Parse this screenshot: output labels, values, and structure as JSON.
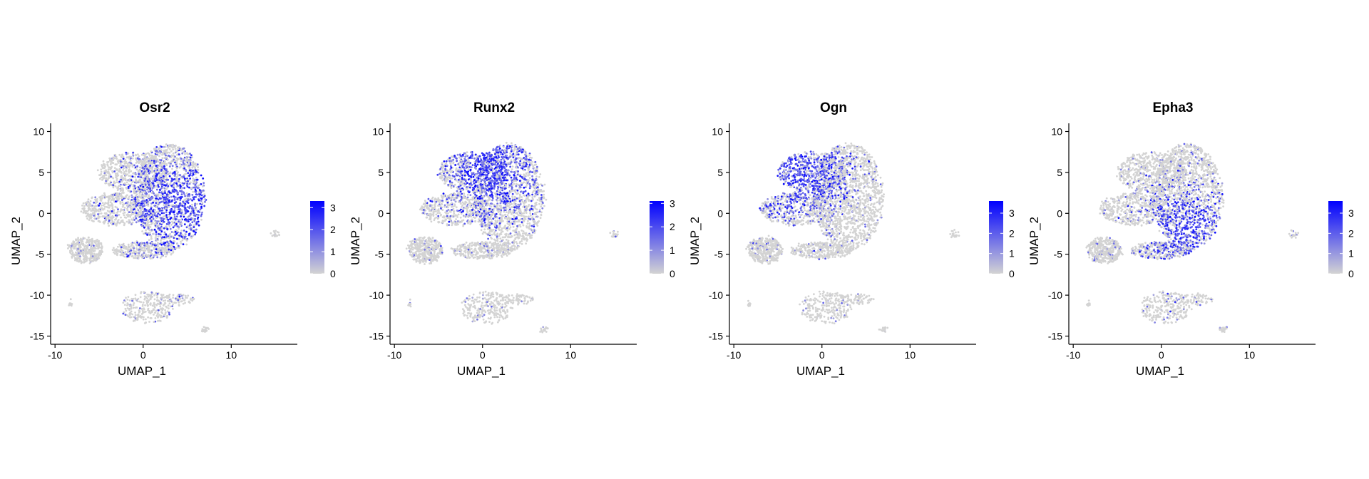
{
  "chart_data": [
    {
      "type": "scatter",
      "title": "Osr2",
      "xlabel": "UMAP_1",
      "ylabel": "UMAP_2",
      "xticks": [
        -10,
        0,
        10
      ],
      "yticks": [
        -15,
        -10,
        -5,
        0,
        5,
        10
      ],
      "xlim": [
        -10.5,
        17.5
      ],
      "ylim": [
        -16,
        11
      ],
      "legend": {
        "position": "right",
        "ticks": [
          0,
          1,
          2,
          3
        ],
        "max": 3.3,
        "low_color": "#d3d3d3",
        "high_color": "#0000ff"
      },
      "expression_center": [
        5,
        1
      ],
      "expression_spread": 4
    },
    {
      "type": "scatter",
      "title": "Runx2",
      "xlabel": "UMAP_1",
      "ylabel": "UMAP_2",
      "xticks": [
        -10,
        0,
        10
      ],
      "yticks": [
        -15,
        -10,
        -5,
        0,
        5,
        10
      ],
      "xlim": [
        -10.5,
        17.5
      ],
      "ylim": [
        -16,
        11
      ],
      "legend": {
        "position": "right",
        "ticks": [
          0,
          1,
          2,
          3
        ],
        "max": 3.1,
        "low_color": "#d3d3d3",
        "high_color": "#0000ff"
      },
      "expression_center": [
        1,
        6
      ],
      "expression_spread": 4
    },
    {
      "type": "scatter",
      "title": "Ogn",
      "xlabel": "UMAP_1",
      "ylabel": "UMAP_2",
      "xticks": [
        -10,
        0,
        10
      ],
      "yticks": [
        -15,
        -10,
        -5,
        0,
        5,
        10
      ],
      "xlim": [
        -10.5,
        17.5
      ],
      "ylim": [
        -16,
        11
      ],
      "legend": {
        "position": "right",
        "ticks": [
          0,
          1,
          2,
          3
        ],
        "max": 3.6,
        "low_color": "#d3d3d3",
        "high_color": "#0000ff"
      },
      "expression_center": [
        -3,
        5
      ],
      "expression_spread": 3.5
    },
    {
      "type": "scatter",
      "title": "Epha3",
      "xlabel": "UMAP_1",
      "ylabel": "UMAP_2",
      "xticks": [
        -10,
        0,
        10
      ],
      "yticks": [
        -15,
        -10,
        -5,
        0,
        5,
        10
      ],
      "xlim": [
        -10.5,
        17.5
      ],
      "ylim": [
        -16,
        11
      ],
      "legend": {
        "position": "right",
        "ticks": [
          0,
          1,
          2,
          3
        ],
        "max": 3.6,
        "low_color": "#d3d3d3",
        "high_color": "#0000ff"
      },
      "expression_center": [
        3,
        -2
      ],
      "expression_spread": 3
    }
  ]
}
